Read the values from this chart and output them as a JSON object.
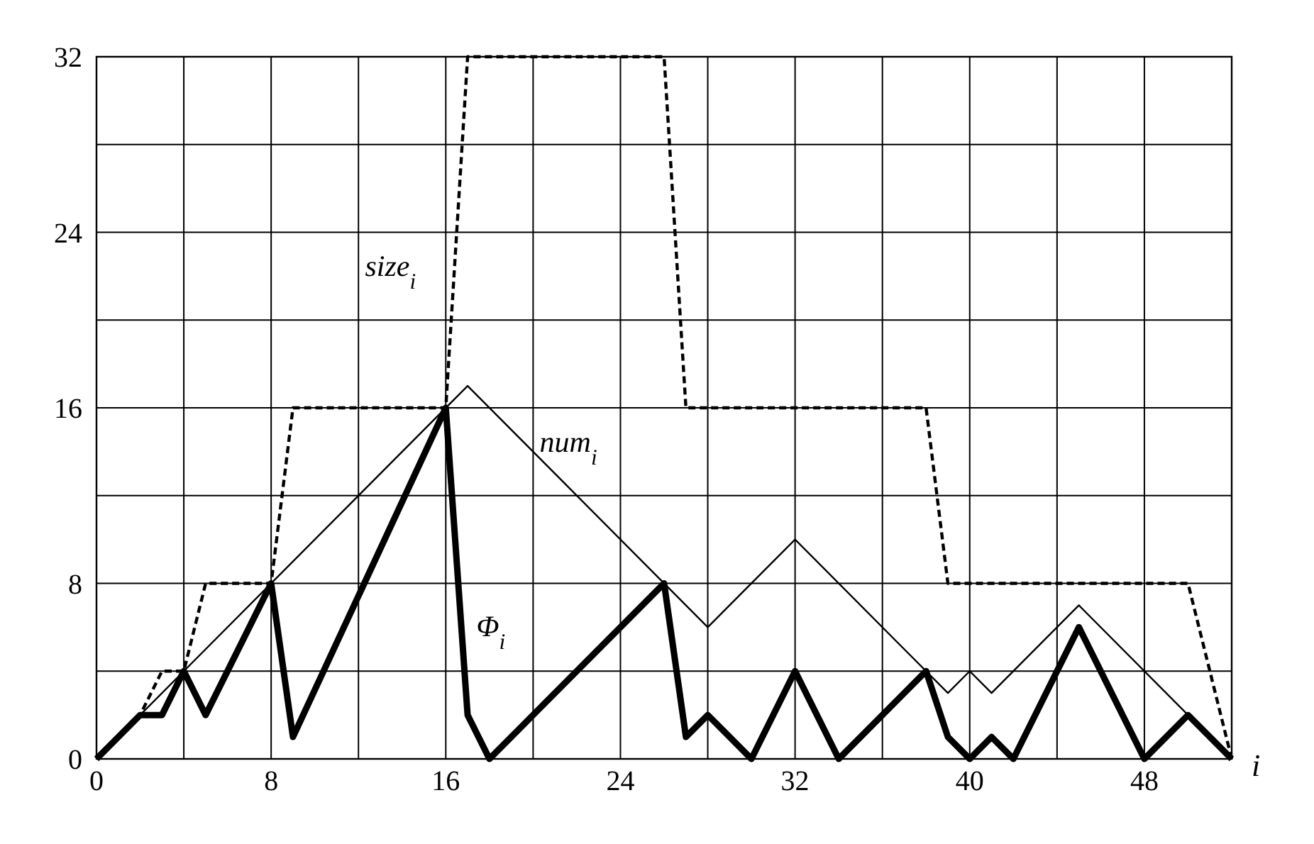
{
  "chart_data": {
    "type": "line",
    "xlabel": "i",
    "xlim": [
      0,
      52
    ],
    "ylim": [
      0,
      32
    ],
    "xticks": [
      0,
      {
        "value": 4,
        "label": null
      },
      8,
      {
        "value": 12,
        "label": null
      },
      16,
      {
        "value": 20,
        "label": null
      },
      24,
      {
        "value": 28,
        "label": null
      },
      32,
      {
        "value": 36,
        "label": null
      },
      40,
      {
        "value": 44,
        "label": null
      },
      48,
      {
        "value": 52,
        "label": null
      }
    ],
    "yticks": [
      0,
      {
        "value": 4,
        "label": null
      },
      8,
      {
        "value": 12,
        "label": null
      },
      16,
      {
        "value": 20,
        "label": null
      },
      24,
      {
        "value": 28,
        "label": null
      },
      32
    ],
    "grid": true,
    "marker": "none",
    "series": [
      {
        "name": "size$_{i}$",
        "color": "#000000",
        "line_style": "dashed",
        "x": [
          0,
          2,
          3,
          4,
          5,
          8,
          9,
          16,
          17,
          26,
          27,
          38,
          39,
          50,
          52
        ],
        "values": [
          0,
          2,
          4,
          4,
          8,
          8,
          16,
          16,
          32,
          32,
          16,
          16,
          8,
          8,
          0
        ]
      },
      {
        "name": "num$_{i}$",
        "color": "#000000",
        "line_style": "solid",
        "x": [
          0,
          17,
          28,
          32,
          39,
          40,
          41,
          45,
          52
        ],
        "values": [
          0,
          17,
          6,
          10,
          3,
          4,
          3,
          7,
          0
        ]
      },
      {
        "name": "Φ$_{i}$",
        "color": "#000000",
        "line_style": "solid",
        "x": [
          0,
          1,
          2,
          3,
          4,
          5,
          8,
          9,
          16,
          17,
          18,
          26,
          27,
          28,
          30,
          32,
          34,
          38,
          39,
          40,
          41,
          42,
          45,
          48,
          50,
          52
        ],
        "values": [
          0,
          1,
          2,
          2,
          4,
          2,
          8,
          1,
          16,
          2,
          0,
          8,
          1,
          2,
          0,
          4,
          0,
          4,
          1,
          0,
          1,
          0,
          6,
          0,
          2,
          0
        ]
      }
    ]
  }
}
